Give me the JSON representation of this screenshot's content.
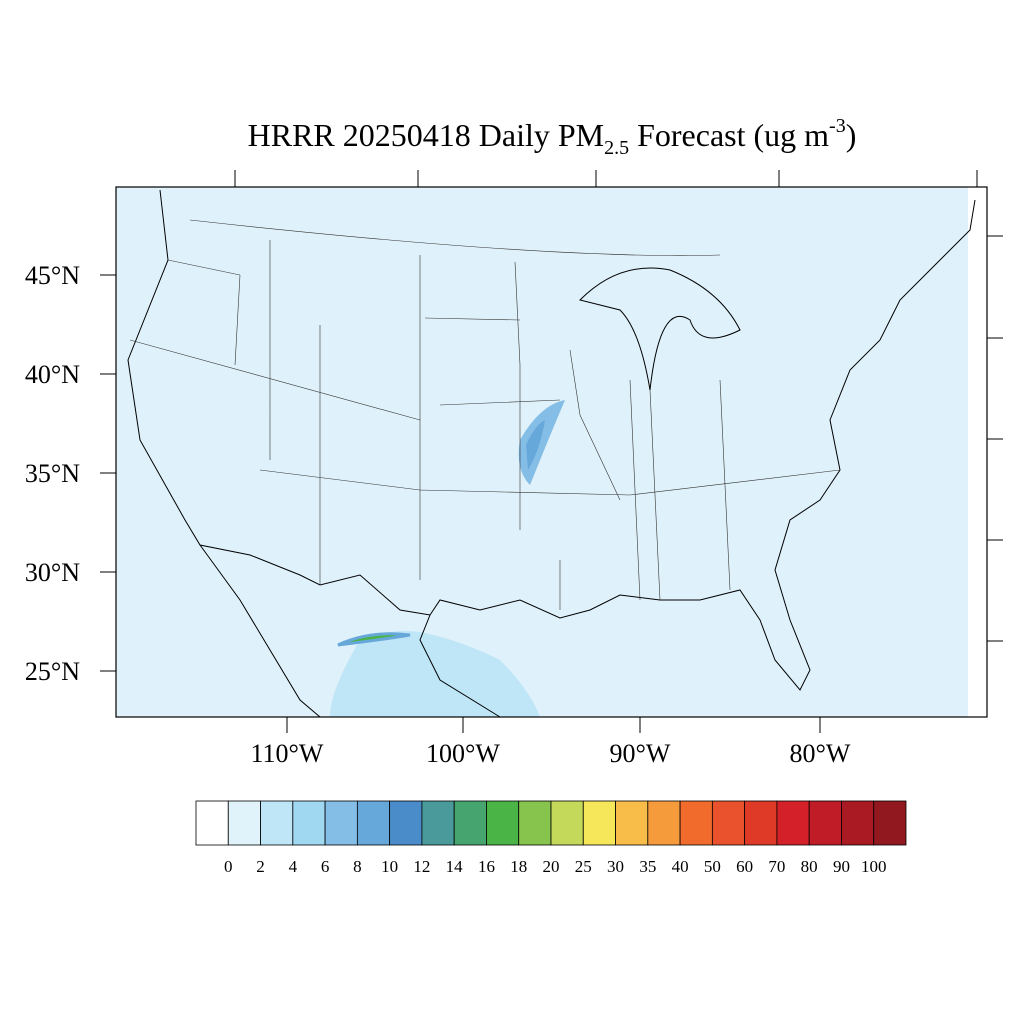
{
  "title": {
    "main": "HRRR 20250418 Daily PM",
    "subscript": "2.5",
    "rest": " Forecast (ug m",
    "superscript": "-3",
    "close": ")"
  },
  "map": {
    "lat_labels": [
      "45°N",
      "40°N",
      "35°N",
      "30°N",
      "25°N"
    ],
    "lon_labels": [
      "110°W",
      "100°W",
      "90°W",
      "80°W"
    ]
  },
  "colorbar": {
    "levels": [
      0,
      2,
      4,
      6,
      8,
      10,
      12,
      14,
      16,
      18,
      20,
      25,
      30,
      35,
      40,
      50,
      60,
      70,
      80,
      90,
      100
    ],
    "colors": [
      "#ffffff",
      "#e0f3fb",
      "#bfe6f7",
      "#a0d8f2",
      "#84bde5",
      "#67a8db",
      "#4a8cc9",
      "#4a9a9c",
      "#46a56e",
      "#4ab446",
      "#86c44e",
      "#c4d85a",
      "#f6e65a",
      "#f7bd48",
      "#f59b3b",
      "#f16c2c",
      "#e9522c",
      "#df3a28",
      "#d42129",
      "#bf1c27",
      "#a91a22",
      "#921820"
    ]
  }
}
